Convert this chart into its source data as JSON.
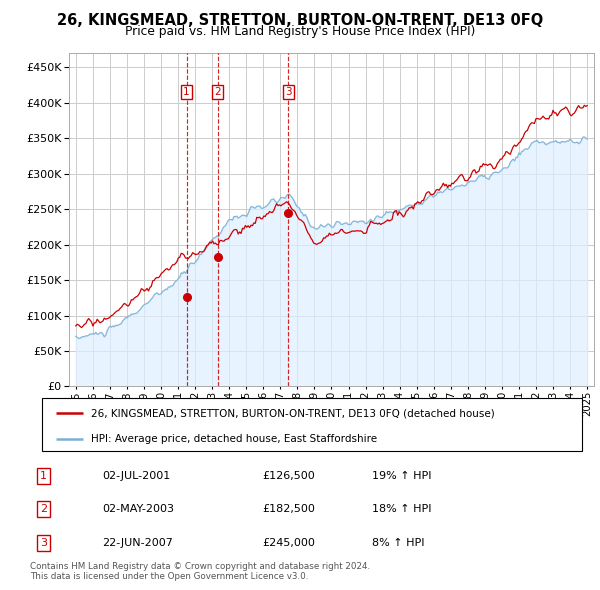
{
  "title": "26, KINGSMEAD, STRETTON, BURTON-ON-TRENT, DE13 0FQ",
  "subtitle": "Price paid vs. HM Land Registry's House Price Index (HPI)",
  "legend_line1": "26, KINGSMEAD, STRETTON, BURTON-ON-TRENT, DE13 0FQ (detached house)",
  "legend_line2": "HPI: Average price, detached house, East Staffordshire",
  "footer1": "Contains HM Land Registry data © Crown copyright and database right 2024.",
  "footer2": "This data is licensed under the Open Government Licence v3.0.",
  "transactions": [
    {
      "num": 1,
      "date": "02-JUL-2001",
      "price": 126500,
      "pct": "19%",
      "dir": "↑"
    },
    {
      "num": 2,
      "date": "02-MAY-2003",
      "price": 182500,
      "pct": "18%",
      "dir": "↑"
    },
    {
      "num": 3,
      "date": "22-JUN-2007",
      "price": 245000,
      "pct": "8%",
      "dir": "↑"
    }
  ],
  "transaction_years": [
    2001.5,
    2003.33,
    2007.47
  ],
  "ylim": [
    0,
    470000
  ],
  "yticks": [
    0,
    50000,
    100000,
    150000,
    200000,
    250000,
    300000,
    350000,
    400000,
    450000
  ],
  "red_color": "#cc0000",
  "blue_color": "#7bafd4",
  "shade_color": "#ddeeff",
  "grid_color": "#cccccc",
  "background_color": "#ffffff"
}
